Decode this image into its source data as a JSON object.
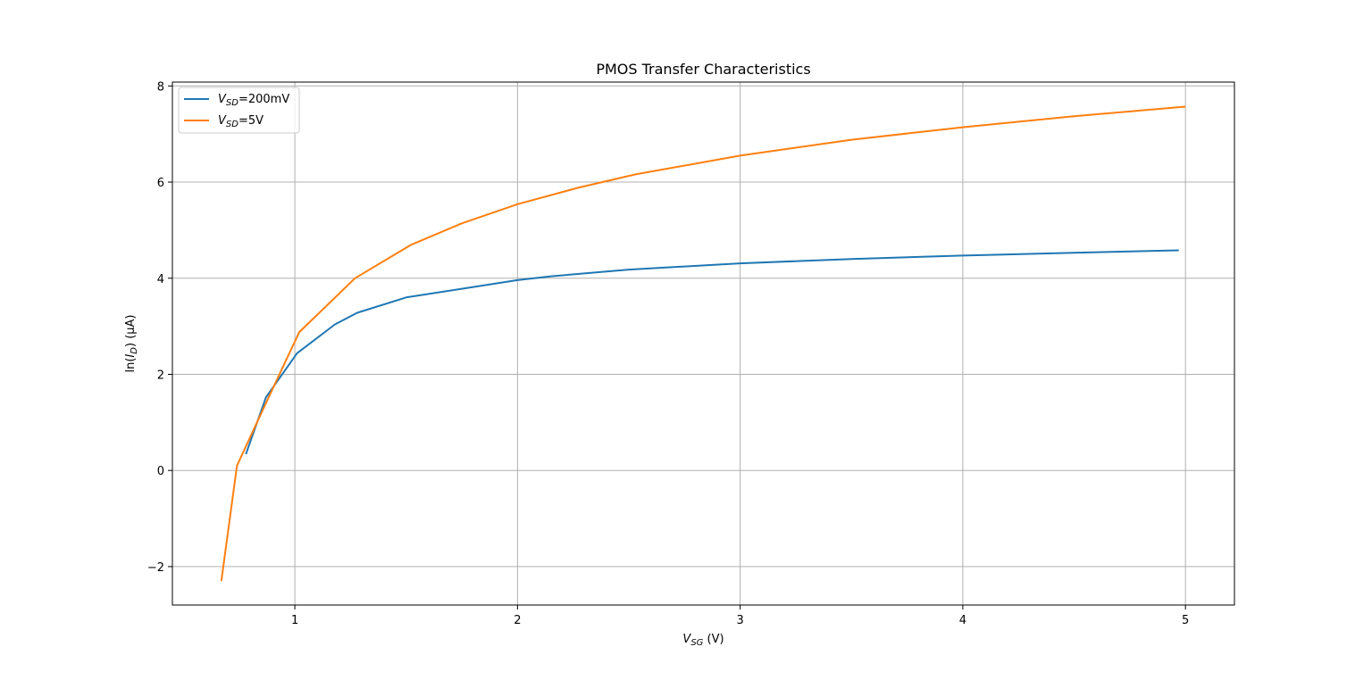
{
  "chart_data": {
    "type": "line",
    "title": "PMOS Transfer Characteristics",
    "xlabel": {
      "main": "V",
      "sub": "SG",
      "suffix": " (V)"
    },
    "ylabel": {
      "prefix": "ln(",
      "main": "I",
      "sub": "D",
      "suffix": ") (μA)"
    },
    "xlim": [
      0.45,
      5.22
    ],
    "ylim": [
      -2.8,
      8.08
    ],
    "xticks": [
      1,
      2,
      3,
      4,
      5
    ],
    "xtick_labels": [
      "1",
      "2",
      "3",
      "4",
      "5"
    ],
    "yticks": [
      -2,
      0,
      2,
      4,
      6,
      8
    ],
    "ytick_labels": [
      "−2",
      "0",
      "2",
      "4",
      "6",
      "8"
    ],
    "grid": true,
    "legend_position": "upper-left",
    "series": [
      {
        "name": {
          "main": "V",
          "sub": "SD",
          "suffix": "=200mV"
        },
        "color": "#1f77b4",
        "x": [
          0.78,
          0.87,
          1.01,
          1.18,
          1.28,
          1.5,
          1.75,
          2.0,
          2.15,
          2.5,
          3.0,
          3.5,
          4.0,
          4.5,
          4.97
        ],
        "y": [
          0.34,
          1.52,
          2.44,
          3.04,
          3.28,
          3.6,
          3.78,
          3.96,
          4.04,
          4.18,
          4.31,
          4.4,
          4.47,
          4.53,
          4.58
        ]
      },
      {
        "name": {
          "main": "V",
          "sub": "SD",
          "suffix": "=5V"
        },
        "color": "#ff7f0e",
        "x": [
          0.67,
          0.74,
          0.88,
          1.02,
          1.27,
          1.52,
          1.75,
          2.0,
          2.27,
          2.53,
          3.0,
          3.5,
          4.0,
          4.5,
          5.0
        ],
        "y": [
          -2.3,
          0.1,
          1.5,
          2.88,
          4.0,
          4.69,
          5.14,
          5.54,
          5.88,
          6.16,
          6.55,
          6.88,
          7.14,
          7.37,
          7.57
        ]
      }
    ]
  }
}
